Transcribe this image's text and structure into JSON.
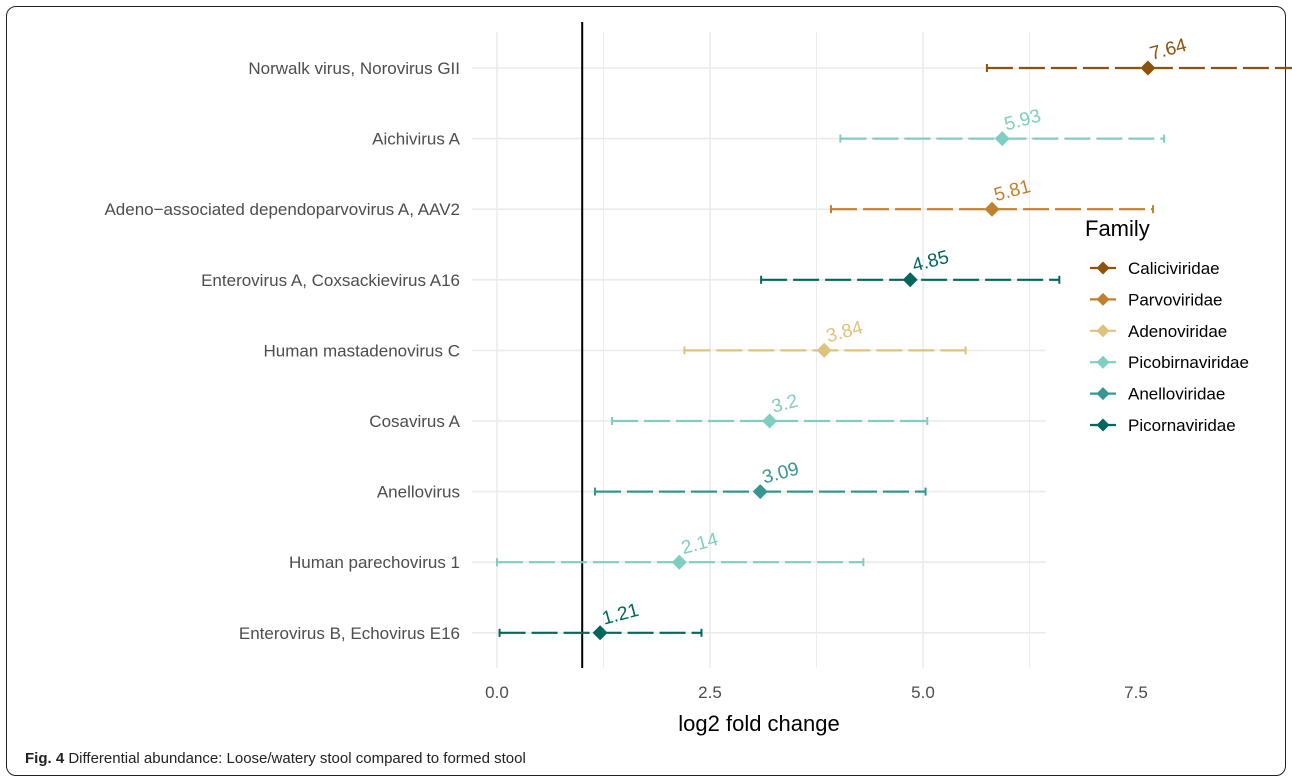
{
  "caption": {
    "label": "Fig. 4",
    "text": "Differential abundance: Loose/watery stool compared to formed stool"
  },
  "chart_data": {
    "type": "scatter",
    "xlabel": "log2 fold change",
    "ylabel": "",
    "xlim": [
      -0.5,
      10.0
    ],
    "xticks": [
      0.0,
      2.5,
      5.0,
      7.5
    ],
    "xtick_labels": [
      "0.0",
      "2.5",
      "5.0",
      "7.5"
    ],
    "reference_line_x": 1.0,
    "grid": true,
    "legend": {
      "title": "Family",
      "placement": "right",
      "entries": [
        {
          "name": "Caliciviridae",
          "color": "#8c510a"
        },
        {
          "name": "Parvoviridae",
          "color": "#bf812d"
        },
        {
          "name": "Adenoviridae",
          "color": "#dfc27d"
        },
        {
          "name": "Picobirnaviridae",
          "color": "#80cdc1"
        },
        {
          "name": "Anelloviridae",
          "color": "#35978f"
        },
        {
          "name": "Picornaviridae",
          "color": "#01665e"
        }
      ]
    },
    "points": [
      {
        "label": "Norwalk virus, Norovirus GII",
        "value": 7.64,
        "value_label": "7.64",
        "low": 5.75,
        "high": 9.5,
        "color": "#8c510a"
      },
      {
        "label": "Aichivirus A",
        "value": 5.93,
        "value_label": "5.93",
        "low": 4.03,
        "high": 7.83,
        "color": "#80cdc1"
      },
      {
        "label": "Adeno−associated dependoparvovirus A, AAV2",
        "value": 5.81,
        "value_label": "5.81",
        "low": 3.92,
        "high": 7.7,
        "color": "#bf812d"
      },
      {
        "label": "Enterovirus A, Coxsackievirus A16",
        "value": 4.85,
        "value_label": "4.85",
        "low": 3.1,
        "high": 6.6,
        "color": "#01665e"
      },
      {
        "label": "Human mastadenovirus C",
        "value": 3.84,
        "value_label": "3.84",
        "low": 2.2,
        "high": 5.5,
        "color": "#dfc27d"
      },
      {
        "label": "Cosavirus A",
        "value": 3.2,
        "value_label": "3.2",
        "low": 1.35,
        "high": 5.05,
        "color": "#80cdc1"
      },
      {
        "label": "Anellovirus",
        "value": 3.09,
        "value_label": "3.09",
        "low": 1.15,
        "high": 5.03,
        "color": "#35978f"
      },
      {
        "label": "Human parechovirus 1",
        "value": 2.14,
        "value_label": "2.14",
        "low": 0.0,
        "high": 4.3,
        "color": "#80cdc1"
      },
      {
        "label": "Enterovirus B, Echovirus E16",
        "value": 1.21,
        "value_label": "1.21",
        "low": 0.03,
        "high": 2.4,
        "color": "#01665e"
      }
    ]
  }
}
